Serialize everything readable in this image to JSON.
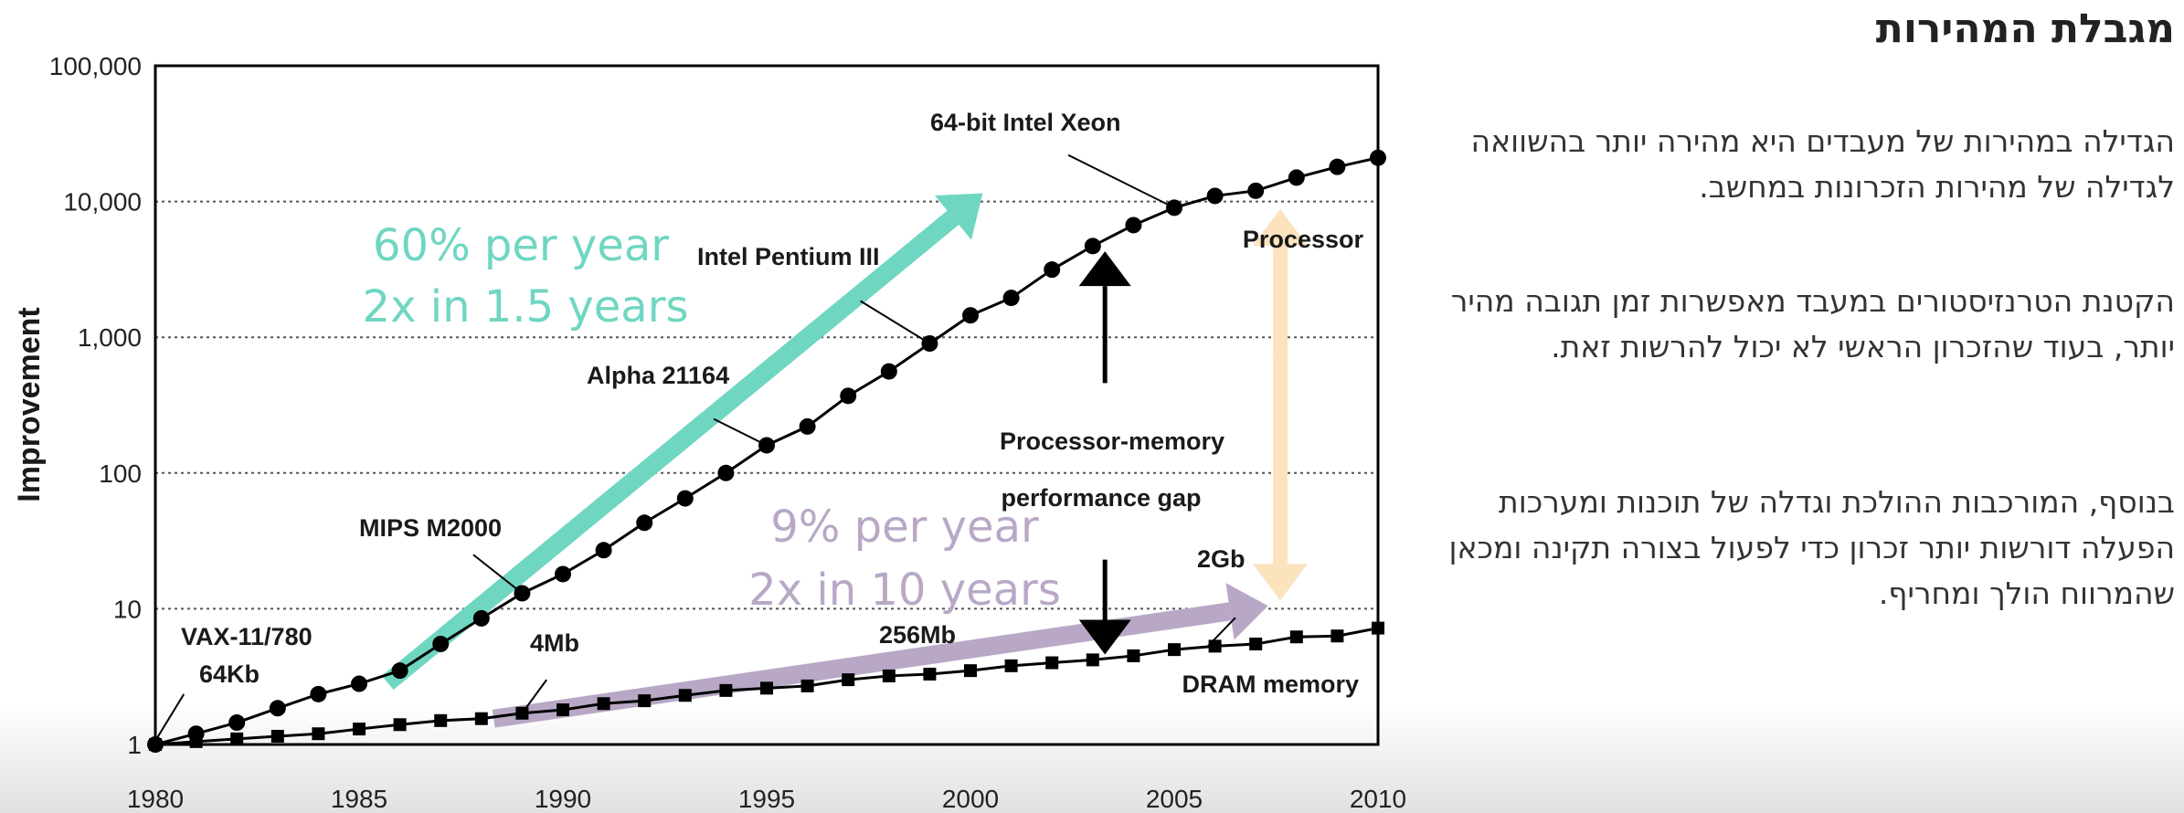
{
  "slide": {
    "title": "מגבלת המהירות",
    "paragraphs": [
      "הגדילה במהירות של מעבדים היא מהירה יותר בהשוואה לגדילה של מהירות הזכרונות במחשב.",
      "הקטנת הטרנזיסטורים במעבד מאפשרות זמן תגובה מהיר יותר, בעוד שהזכרון הראשי לא יכול להרשות זאת.",
      "בנוסף, המורכבות ההולכת וגדלה של תוכנות ומערכות הפעלה דורשות יותר זכרון כדי לפעול בצורה תקינה ומכאן שהמרווח הולך ומחריף."
    ]
  },
  "chart_data": {
    "type": "line",
    "ylabel": "Improvement",
    "xlabel": "",
    "yscale": "log",
    "xlim": [
      1980,
      2010
    ],
    "ylim": [
      1,
      100000
    ],
    "grid": "horizontal dotted",
    "x_ticks": [
      1980,
      1985,
      1990,
      1995,
      2000,
      2005,
      2010
    ],
    "y_ticks": [
      1,
      10,
      100,
      1000,
      10000,
      100000
    ],
    "y_tick_labels": [
      "1",
      "10",
      "100",
      "1,000",
      "10,000",
      "100,000"
    ],
    "series": [
      {
        "name": "Processor",
        "marker": "circle",
        "color": "#000000",
        "x": [
          1980,
          1981,
          1982,
          1983,
          1984,
          1985,
          1986,
          1987,
          1988,
          1989,
          1990,
          1991,
          1992,
          1993,
          1994,
          1995,
          1996,
          1997,
          1998,
          1999,
          2000,
          2001,
          2002,
          2003,
          2004,
          2005,
          2006,
          2007,
          2008,
          2009,
          2010
        ],
        "y": [
          1,
          1.2,
          1.45,
          1.85,
          2.35,
          2.8,
          3.5,
          5.5,
          8.5,
          13,
          18,
          27,
          43,
          65,
          100,
          160,
          220,
          370,
          560,
          900,
          1450,
          1950,
          3150,
          4700,
          6700,
          9000,
          11000,
          12000,
          15000,
          18000,
          21000
        ]
      },
      {
        "name": "DRAM memory",
        "marker": "square",
        "color": "#000000",
        "x": [
          1980,
          1981,
          1982,
          1983,
          1984,
          1985,
          1986,
          1987,
          1988,
          1989,
          1990,
          1991,
          1992,
          1993,
          1994,
          1995,
          1996,
          1997,
          1998,
          1999,
          2000,
          2001,
          2002,
          2003,
          2004,
          2005,
          2006,
          2007,
          2008,
          2009,
          2010
        ],
        "y": [
          1,
          1.05,
          1.1,
          1.15,
          1.2,
          1.3,
          1.4,
          1.5,
          1.55,
          1.7,
          1.8,
          2.0,
          2.1,
          2.3,
          2.5,
          2.6,
          2.7,
          3.0,
          3.2,
          3.3,
          3.5,
          3.8,
          4.0,
          4.2,
          4.5,
          5.0,
          5.3,
          5.5,
          6.2,
          6.3,
          7.2
        ]
      }
    ],
    "annotations": {
      "point_labels": [
        {
          "text": "VAX-11/780",
          "x": 1980
        },
        {
          "text": "64Kb",
          "x": 1980
        },
        {
          "text": "MIPS M2000",
          "x": 1989
        },
        {
          "text": "4Mb",
          "x": 1989
        },
        {
          "text": "Alpha 21164",
          "x": 1995
        },
        {
          "text": "Intel Pentium III",
          "x": 1999
        },
        {
          "text": "64-bit Intel Xeon",
          "x": 2005
        },
        {
          "text": "256Mb",
          "x": 2005
        },
        {
          "text": "2Gb",
          "x": 2006
        }
      ],
      "series_labels": [
        "Processor",
        "DRAM memory"
      ],
      "gap_label_line1": "Processor-memory",
      "gap_label_line2": "performance gap",
      "processor_rate_line1": "60% per year",
      "processor_rate_line2": "2x in 1.5 years",
      "memory_rate_line1": "9% per year",
      "memory_rate_line2": "2x in 10 years"
    },
    "colors": {
      "processor_trend": "#6fd6c2",
      "memory_trend": "#b8a8c6",
      "gap_highlight": "#fbe3bd"
    }
  }
}
